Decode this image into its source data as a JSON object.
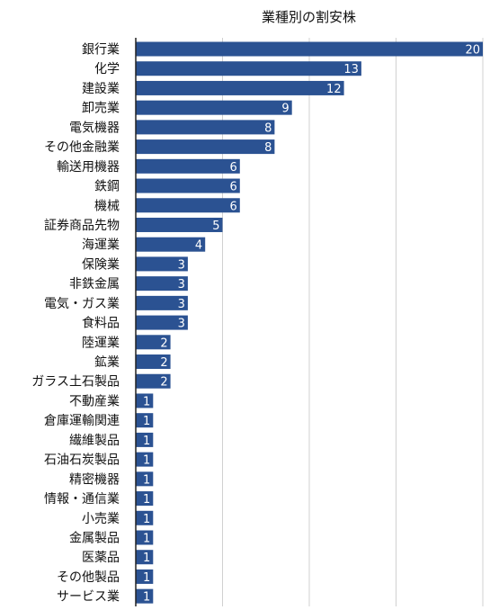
{
  "chart_data": {
    "type": "bar",
    "orientation": "horizontal",
    "title": "業種別の割安株",
    "xlabel": "",
    "ylabel": "",
    "xlim": [
      0,
      20
    ],
    "grid": true,
    "legend": "none",
    "bar_color": "#2b5292",
    "categories": [
      "銀行業",
      "化学",
      "建設業",
      "卸売業",
      "電気機器",
      "その他金融業",
      "輸送用機器",
      "鉄鋼",
      "機械",
      "証券商品先物",
      "海運業",
      "保険業",
      "非鉄金属",
      "電気・ガス業",
      "食料品",
      "陸運業",
      "鉱業",
      "ガラス土石製品",
      "不動産業",
      "倉庫運輸関連",
      "繊維製品",
      "石油石炭製品",
      "精密機器",
      "情報・通信業",
      "小売業",
      "金属製品",
      "医薬品",
      "その他製品",
      "サービス業"
    ],
    "values": [
      20,
      13,
      12,
      9,
      8,
      8,
      6,
      6,
      6,
      5,
      4,
      3,
      3,
      3,
      3,
      2,
      2,
      2,
      1,
      1,
      1,
      1,
      1,
      1,
      1,
      1,
      1,
      1,
      1
    ]
  }
}
